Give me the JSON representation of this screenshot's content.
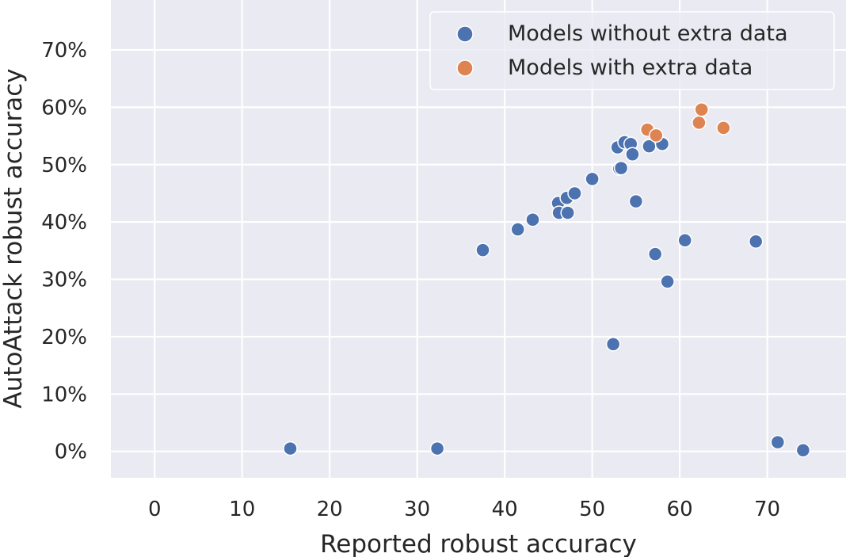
{
  "chart_data": {
    "type": "scatter",
    "xlabel": "Reported robust accuracy",
    "ylabel": "AutoAttack robust accuracy",
    "xlim": [
      -5,
      79
    ],
    "ylim": [
      -4.6,
      78.7
    ],
    "x_ticks": [
      0,
      10,
      20,
      30,
      40,
      50,
      60,
      70
    ],
    "y_ticks": [
      0,
      10,
      20,
      30,
      40,
      50,
      60,
      70
    ],
    "y_tick_labels": [
      "0%",
      "10%",
      "20%",
      "30%",
      "40%",
      "50%",
      "60%",
      "70%"
    ],
    "grid": true,
    "legend_position": "top-right",
    "series": [
      {
        "name": "Models without extra data",
        "color": "#4c72b0",
        "points": [
          [
            15.5,
            0.5
          ],
          [
            32.3,
            0.5
          ],
          [
            37.5,
            35.1
          ],
          [
            41.5,
            38.7
          ],
          [
            43.2,
            40.4
          ],
          [
            46.1,
            43.3
          ],
          [
            46.2,
            41.6
          ],
          [
            47.1,
            44.2
          ],
          [
            47.2,
            41.6
          ],
          [
            48.0,
            45.0
          ],
          [
            50.0,
            47.5
          ],
          [
            52.4,
            18.7
          ],
          [
            52.9,
            53.0
          ],
          [
            53.1,
            49.3
          ],
          [
            53.3,
            49.4
          ],
          [
            53.7,
            53.9
          ],
          [
            54.4,
            53.6
          ],
          [
            54.6,
            51.8
          ],
          [
            55.0,
            43.6
          ],
          [
            56.5,
            53.2
          ],
          [
            57.2,
            34.4
          ],
          [
            58.0,
            53.6
          ],
          [
            58.6,
            29.6
          ],
          [
            60.6,
            36.8
          ],
          [
            68.7,
            36.6
          ],
          [
            71.2,
            1.6
          ],
          [
            74.1,
            0.2
          ]
        ]
      },
      {
        "name": "Models with extra data",
        "color": "#dd8452",
        "points": [
          [
            56.3,
            56.1
          ],
          [
            57.3,
            55.1
          ],
          [
            62.2,
            57.3
          ],
          [
            62.5,
            59.6
          ],
          [
            65.0,
            56.4
          ]
        ]
      }
    ]
  },
  "colors": {
    "plot_background": "#eaeaf2",
    "grid": "#ffffff",
    "text": "#262626"
  }
}
